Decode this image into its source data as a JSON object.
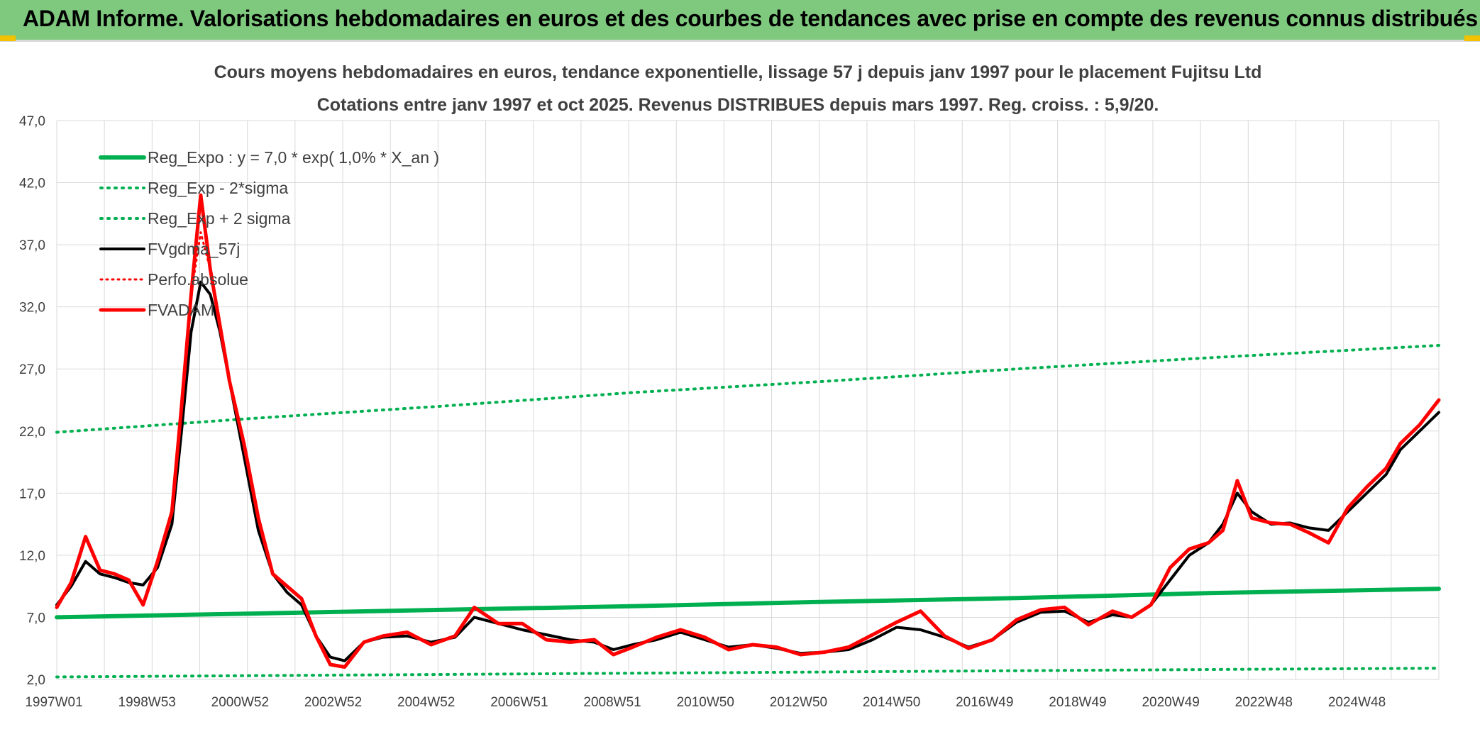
{
  "banner": {
    "title": "ADAM Informe. Valorisations hebdomadaires en euros et des courbes de tendances avec prise en compte des revenus connus distribués"
  },
  "colors": {
    "banner_bg": "#7fc97f",
    "regression": "#00b050",
    "smoothed": "#000000",
    "adam": "#ff0000",
    "grid": "#d9d9d9",
    "title_text": "#404040"
  },
  "chart_data": {
    "type": "line",
    "title": "Cours moyens hebdomadaires en euros, tendance exponentielle, lissage 57 j depuis janv 1997 pour le placement Fujitsu Ltd",
    "subtitle": "Cotations entre janv 1997 et oct 2025. Revenus DISTRIBUES depuis mars 1997. Reg. croiss. : 5,9/20.",
    "xlabel": "",
    "ylabel": "",
    "x_tick_labels": [
      "1997W01",
      "1998W53",
      "2000W52",
      "2002W52",
      "2004W52",
      "2006W51",
      "2008W51",
      "2010W50",
      "2012W50",
      "2014W50",
      "2016W49",
      "2018W49",
      "2020W49",
      "2022W48",
      "2024W48"
    ],
    "x_range": [
      1997.0,
      2025.8
    ],
    "y_tick_labels": [
      "2,0",
      "7,0",
      "12,0",
      "17,0",
      "22,0",
      "27,0",
      "32,0",
      "37,0",
      "42,0",
      "47,0"
    ],
    "y_ticks": [
      2,
      7,
      12,
      17,
      22,
      27,
      32,
      37,
      42,
      47
    ],
    "ylim": [
      2,
      47
    ],
    "grid": true,
    "legend_position": "top-left",
    "legend": [
      {
        "label": "Reg_Expo : y = 7,0 * exp( 1,0% *  X_an )",
        "style": "solid-green"
      },
      {
        "label": "Reg_Exp - 2*sigma",
        "style": "dotted-green"
      },
      {
        "label": "Reg_Exp + 2 sigma",
        "style": "dotted-green"
      },
      {
        "label": "FVgdma_57j",
        "style": "solid-black"
      },
      {
        "label": "Perfo.absolue",
        "style": "dotted-red"
      },
      {
        "label": "FVADAM",
        "style": "solid-red"
      }
    ],
    "series": [
      {
        "name": "Reg_Expo : y = 7,0 * exp( 1,0% *  X_an )",
        "style": "solid-green",
        "x": [
          1997.0,
          2001.0,
          2005.0,
          2009.0,
          2013.0,
          2017.0,
          2021.0,
          2025.8
        ],
        "y": [
          7.0,
          7.3,
          7.6,
          7.9,
          8.25,
          8.55,
          8.95,
          9.3
        ]
      },
      {
        "name": "Reg_Exp - 2*sigma",
        "style": "dotted-green",
        "x": [
          1997.0,
          2001.0,
          2005.0,
          2009.0,
          2013.0,
          2017.0,
          2021.0,
          2025.8
        ],
        "y": [
          2.2,
          2.3,
          2.4,
          2.5,
          2.6,
          2.7,
          2.8,
          2.9
        ]
      },
      {
        "name": "Reg_Exp + 2 sigma",
        "style": "dotted-green",
        "x": [
          1997.0,
          2001.0,
          2005.0,
          2009.0,
          2013.0,
          2017.0,
          2021.0,
          2025.8
        ],
        "y": [
          21.9,
          23.0,
          24.0,
          25.1,
          26.0,
          27.0,
          27.9,
          28.9
        ]
      },
      {
        "name": "FVgdma_57j",
        "style": "solid-black",
        "x": [
          1997.0,
          1997.3,
          1997.6,
          1997.9,
          1998.2,
          1998.5,
          1998.8,
          1999.1,
          1999.4,
          1999.6,
          1999.8,
          2000.0,
          2000.2,
          2000.4,
          2000.6,
          2000.9,
          2001.2,
          2001.5,
          2001.8,
          2002.1,
          2002.4,
          2002.7,
          2003.0,
          2003.4,
          2003.8,
          2004.3,
          2004.8,
          2005.3,
          2005.7,
          2006.2,
          2006.7,
          2007.2,
          2007.7,
          2008.2,
          2008.6,
          2009.0,
          2009.5,
          2010.0,
          2010.5,
          2011.0,
          2011.5,
          2012.0,
          2012.5,
          2013.0,
          2013.5,
          2014.0,
          2014.5,
          2015.0,
          2015.5,
          2016.0,
          2016.5,
          2017.0,
          2017.5,
          2018.0,
          2018.5,
          2019.0,
          2019.4,
          2019.8,
          2020.2,
          2020.6,
          2021.0,
          2021.3,
          2021.6,
          2021.9,
          2022.3,
          2022.7,
          2023.1,
          2023.5,
          2023.9,
          2024.3,
          2024.7,
          2025.0,
          2025.4,
          2025.8
        ],
        "y": [
          8.0,
          9.5,
          11.5,
          10.5,
          10.2,
          9.8,
          9.6,
          11.0,
          14.5,
          22.0,
          30.0,
          34.0,
          33.0,
          30.0,
          26.0,
          20.0,
          14.0,
          10.5,
          9.0,
          8.0,
          5.5,
          3.8,
          3.5,
          5.0,
          5.4,
          5.5,
          5.0,
          5.4,
          7.0,
          6.5,
          6.0,
          5.6,
          5.2,
          5.0,
          4.4,
          4.8,
          5.2,
          5.8,
          5.2,
          4.6,
          4.8,
          4.5,
          4.1,
          4.2,
          4.4,
          5.2,
          6.2,
          6.0,
          5.4,
          4.6,
          5.2,
          6.6,
          7.4,
          7.5,
          6.6,
          7.2,
          7.0,
          8.0,
          10.0,
          12.0,
          13.0,
          14.5,
          17.0,
          15.5,
          14.5,
          14.6,
          14.2,
          14.0,
          15.5,
          17.0,
          18.5,
          20.5,
          22.0,
          23.5
        ]
      },
      {
        "name": "Perfo.absolue",
        "style": "dotted-red",
        "x": [
          1997.0,
          1997.3,
          1997.6,
          1997.9,
          1998.2,
          1998.5,
          1998.8,
          1999.1,
          1999.4,
          1999.6,
          1999.8,
          2000.0,
          2000.2,
          2000.4,
          2000.6,
          2000.9,
          2001.2,
          2001.5,
          2001.8,
          2002.1,
          2002.4,
          2002.7,
          2003.0,
          2003.4,
          2003.8,
          2004.3,
          2004.8,
          2005.3,
          2005.7,
          2006.2,
          2006.7,
          2007.2,
          2007.7,
          2008.2,
          2008.6,
          2009.0,
          2009.5,
          2010.0,
          2010.5,
          2011.0,
          2011.5,
          2012.0,
          2012.5,
          2013.0,
          2013.5,
          2014.0,
          2014.5,
          2015.0,
          2015.5,
          2016.0,
          2016.5,
          2017.0,
          2017.5,
          2018.0,
          2018.5,
          2019.0,
          2019.4,
          2019.8,
          2020.2,
          2020.6,
          2021.0,
          2021.3,
          2021.6,
          2021.9,
          2022.3,
          2022.7,
          2023.1,
          2023.5,
          2023.9,
          2024.3,
          2024.7,
          2025.0,
          2025.4,
          2025.8
        ],
        "y": [
          7.8,
          9.8,
          13.5,
          10.8,
          10.5,
          10.0,
          8.0,
          11.5,
          15.5,
          24.0,
          33.0,
          38.0,
          35.0,
          30.5,
          26.0,
          21.0,
          15.0,
          10.5,
          9.5,
          8.5,
          5.5,
          3.2,
          3.0,
          5.0,
          5.5,
          5.8,
          4.8,
          5.5,
          7.8,
          6.5,
          6.5,
          5.2,
          5.0,
          5.2,
          4.0,
          4.6,
          5.4,
          6.0,
          5.4,
          4.4,
          4.8,
          4.6,
          4.0,
          4.2,
          4.6,
          5.6,
          6.6,
          7.5,
          5.5,
          4.5,
          5.2,
          6.8,
          7.6,
          7.8,
          6.4,
          7.5,
          7.0,
          8.0,
          11.0,
          12.5,
          13.0,
          14.0,
          18.0,
          15.0,
          14.6,
          14.5,
          13.8,
          13.0,
          15.8,
          17.5,
          19.0,
          21.0,
          22.5,
          24.5
        ]
      },
      {
        "name": "FVADAM",
        "style": "solid-red",
        "x": [
          1997.0,
          1997.3,
          1997.6,
          1997.9,
          1998.2,
          1998.5,
          1998.8,
          1999.1,
          1999.4,
          1999.6,
          1999.8,
          2000.0,
          2000.2,
          2000.4,
          2000.6,
          2000.9,
          2001.2,
          2001.5,
          2001.8,
          2002.1,
          2002.4,
          2002.7,
          2003.0,
          2003.4,
          2003.8,
          2004.3,
          2004.8,
          2005.3,
          2005.7,
          2006.2,
          2006.7,
          2007.2,
          2007.7,
          2008.2,
          2008.6,
          2009.0,
          2009.5,
          2010.0,
          2010.5,
          2011.0,
          2011.5,
          2012.0,
          2012.5,
          2013.0,
          2013.5,
          2014.0,
          2014.5,
          2015.0,
          2015.5,
          2016.0,
          2016.5,
          2017.0,
          2017.5,
          2018.0,
          2018.5,
          2019.0,
          2019.4,
          2019.8,
          2020.2,
          2020.6,
          2021.0,
          2021.3,
          2021.6,
          2021.9,
          2022.3,
          2022.7,
          2023.1,
          2023.5,
          2023.9,
          2024.3,
          2024.7,
          2025.0,
          2025.4,
          2025.8
        ],
        "y": [
          7.8,
          9.8,
          13.5,
          10.8,
          10.5,
          10.0,
          8.0,
          11.5,
          15.5,
          24.0,
          33.0,
          41.0,
          35.0,
          30.5,
          26.0,
          21.0,
          15.0,
          10.5,
          9.5,
          8.5,
          5.5,
          3.2,
          3.0,
          5.0,
          5.5,
          5.8,
          4.8,
          5.5,
          7.8,
          6.5,
          6.5,
          5.2,
          5.0,
          5.2,
          4.0,
          4.6,
          5.4,
          6.0,
          5.4,
          4.4,
          4.8,
          4.6,
          4.0,
          4.2,
          4.6,
          5.6,
          6.6,
          7.5,
          5.5,
          4.5,
          5.2,
          6.8,
          7.6,
          7.8,
          6.4,
          7.5,
          7.0,
          8.0,
          11.0,
          12.5,
          13.0,
          14.0,
          18.0,
          15.0,
          14.6,
          14.5,
          13.8,
          13.0,
          15.8,
          17.5,
          19.0,
          21.0,
          22.5,
          24.5
        ]
      }
    ]
  }
}
